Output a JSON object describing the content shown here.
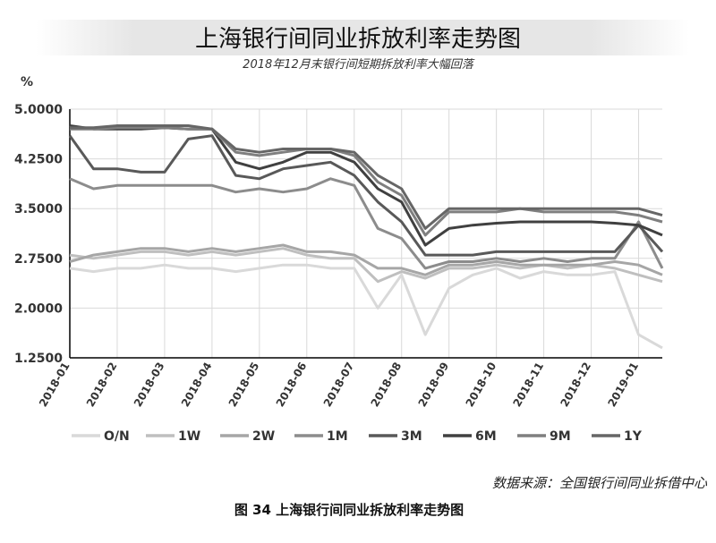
{
  "chart_data": {
    "type": "line",
    "title": "上海银行间同业拆放利率走势图",
    "subtitle": "2018年12月末银行间短期拆放利率大幅回落",
    "y_label": "%",
    "source": "数据来源：全国银行间同业拆借中心",
    "caption": "图 34 上海银行间同业拆放利率走势图",
    "categories": [
      "2018-01",
      null,
      "2018-02",
      null,
      "2018-03",
      null,
      "2018-04",
      null,
      "2018-05",
      null,
      "2018-06",
      null,
      "2018-07",
      null,
      "2018-08",
      null,
      "2018-09",
      null,
      "2018-10",
      null,
      "2018-11",
      null,
      "2018-12",
      null,
      "2019-01",
      null
    ],
    "ylim": [
      1.25,
      5.0
    ],
    "yticks": [
      {
        "value": 1.25,
        "label": "1.2500"
      },
      {
        "value": 2.0,
        "label": "2.0000"
      },
      {
        "value": 2.75,
        "label": "2.7500"
      },
      {
        "value": 3.5,
        "label": "3.5000"
      },
      {
        "value": 4.25,
        "label": "4.2500"
      },
      {
        "value": 5.0,
        "label": "5.0000"
      }
    ],
    "grid": true,
    "legend": "bottom",
    "series": [
      {
        "name": "O/N",
        "color": "#d9d9d9",
        "values": [
          2.6,
          2.55,
          2.6,
          2.6,
          2.65,
          2.6,
          2.6,
          2.55,
          2.6,
          2.65,
          2.65,
          2.6,
          2.6,
          2.0,
          2.5,
          1.6,
          2.3,
          2.5,
          2.6,
          2.45,
          2.55,
          2.5,
          2.5,
          2.55,
          1.6,
          1.4
        ]
      },
      {
        "name": "1W",
        "color": "#bfbfbf",
        "values": [
          2.8,
          2.75,
          2.8,
          2.85,
          2.85,
          2.8,
          2.85,
          2.8,
          2.85,
          2.9,
          2.8,
          2.75,
          2.75,
          2.4,
          2.55,
          2.45,
          2.6,
          2.6,
          2.65,
          2.6,
          2.65,
          2.6,
          2.65,
          2.6,
          2.5,
          2.4
        ]
      },
      {
        "name": "2W",
        "color": "#a6a6a6",
        "values": [
          2.7,
          2.8,
          2.85,
          2.9,
          2.9,
          2.85,
          2.9,
          2.85,
          2.9,
          2.95,
          2.85,
          2.85,
          2.8,
          2.6,
          2.6,
          2.5,
          2.65,
          2.65,
          2.7,
          2.65,
          2.65,
          2.65,
          2.65,
          2.7,
          2.65,
          2.5
        ]
      },
      {
        "name": "1M",
        "color": "#8c8c8c",
        "values": [
          3.95,
          3.8,
          3.85,
          3.85,
          3.85,
          3.85,
          3.85,
          3.75,
          3.8,
          3.75,
          3.8,
          3.95,
          3.85,
          3.2,
          3.05,
          2.6,
          2.7,
          2.7,
          2.75,
          2.7,
          2.75,
          2.7,
          2.75,
          2.75,
          3.3,
          2.6
        ]
      },
      {
        "name": "3M",
        "color": "#595959",
        "values": [
          4.6,
          4.1,
          4.1,
          4.05,
          4.05,
          4.55,
          4.6,
          4.0,
          3.95,
          4.1,
          4.15,
          4.2,
          4.0,
          3.6,
          3.3,
          2.8,
          2.8,
          2.8,
          2.85,
          2.85,
          2.85,
          2.85,
          2.85,
          2.85,
          3.25,
          2.85
        ]
      },
      {
        "name": "6M",
        "color": "#404040",
        "values": [
          4.75,
          4.7,
          4.7,
          4.7,
          4.72,
          4.7,
          4.7,
          4.2,
          4.1,
          4.2,
          4.35,
          4.35,
          4.2,
          3.8,
          3.6,
          2.95,
          3.2,
          3.25,
          3.28,
          3.3,
          3.3,
          3.3,
          3.3,
          3.28,
          3.25,
          3.1
        ]
      },
      {
        "name": "9M",
        "color": "#7f7f7f",
        "values": [
          4.7,
          4.7,
          4.72,
          4.72,
          4.72,
          4.7,
          4.7,
          4.35,
          4.3,
          4.35,
          4.4,
          4.4,
          4.3,
          3.9,
          3.7,
          3.1,
          3.45,
          3.45,
          3.45,
          3.5,
          3.45,
          3.45,
          3.45,
          3.45,
          3.4,
          3.3
        ]
      },
      {
        "name": "1Y",
        "color": "#666666",
        "values": [
          4.72,
          4.72,
          4.75,
          4.75,
          4.75,
          4.75,
          4.7,
          4.4,
          4.35,
          4.4,
          4.4,
          4.4,
          4.35,
          4.0,
          3.8,
          3.2,
          3.5,
          3.5,
          3.5,
          3.5,
          3.5,
          3.5,
          3.5,
          3.5,
          3.5,
          3.4
        ]
      }
    ]
  }
}
